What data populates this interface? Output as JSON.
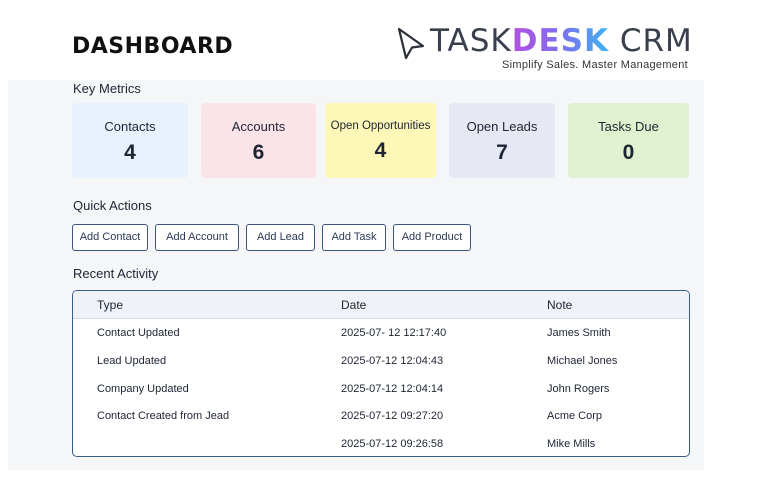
{
  "header": {
    "title": "DASHBOARD",
    "logo": {
      "part1": "TASK",
      "part2": "DESK",
      "part3": " CRM",
      "tagline": "Simplify Sales. Master Management"
    }
  },
  "key_metrics": {
    "label": "Key Metrics",
    "cards": [
      {
        "label": "Contacts",
        "value": "4",
        "color": "#e7f2fc"
      },
      {
        "label": "Accounts",
        "value": "6",
        "color": "#fbe4e8"
      },
      {
        "label": "Open Opportunities",
        "value": "4",
        "color": "#fdf7b8"
      },
      {
        "label": "Open Leads",
        "value": "7",
        "color": "#e6e9f3"
      },
      {
        "label": "Tasks Due",
        "value": "0",
        "color": "#dff1cf"
      }
    ]
  },
  "quick_actions": {
    "label": "Quick Actions",
    "buttons": [
      "Add Contact",
      "Add Account",
      "Add Lead",
      "Add Task",
      "Add Product"
    ]
  },
  "recent_activity": {
    "label": "Recent Activity",
    "columns": [
      "Type",
      "Date",
      "Note"
    ],
    "rows": [
      {
        "type_main": "Contact",
        "type_rest": "Updated",
        "date": "2025-07- 12 12:17:40",
        "note": "James Smith"
      },
      {
        "type_main": "Lead",
        "type_rest": "Updated",
        "date": "2025-07-12 12:04:43",
        "note": "Michael Jones"
      },
      {
        "type_main": "Company",
        "type_rest": "Updated",
        "date": "2025-07-12 12:04:14",
        "note": "John Rogers"
      },
      {
        "type_main": "Contact Created from",
        "type_rest": "Jead",
        "date": "2025-07-12 09:27:20",
        "note": "Acme Corp"
      },
      {
        "type_main": "",
        "type_rest": "",
        "date": "2025-07-12 09:26:58",
        "note": "Mike Mills"
      }
    ]
  },
  "colors": {
    "accent_border": "#3a5a8a",
    "logo_gradient": [
      "#b44fe0",
      "#7c6ff0",
      "#3fb4f3"
    ]
  },
  "icons": {
    "logo_mark": "cursor-arrow-icon"
  }
}
